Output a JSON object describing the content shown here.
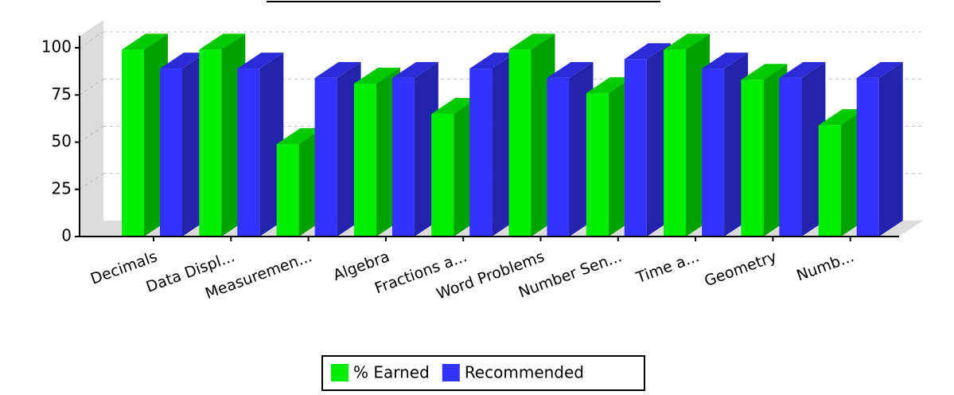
{
  "chart_data": {
    "type": "bar3d",
    "categories": [
      "Decimals",
      "Data Displ...",
      "Measuremen...",
      "Algebra",
      "Fractions a...",
      "Word Problems",
      "Number Sen...",
      "Time a...",
      "Geometry",
      "Numb..."
    ],
    "series": [
      {
        "name": "% Earned",
        "color": "#00ee00",
        "values": [
          99,
          99,
          49,
          81,
          65,
          99,
          76,
          99,
          83,
          59
        ]
      },
      {
        "name": "Recommended",
        "color": "#3333ff",
        "values": [
          89,
          89,
          84,
          84,
          89,
          84,
          94,
          89,
          84,
          84
        ]
      }
    ],
    "ylim": [
      0,
      100
    ],
    "yticks": [
      0,
      25,
      50,
      75,
      100
    ],
    "grid": true,
    "legend": "bottom"
  }
}
